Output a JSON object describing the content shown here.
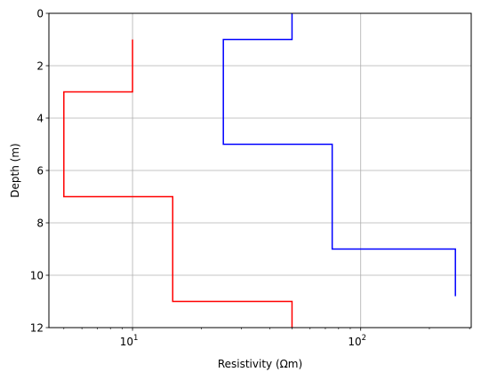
{
  "chart_data": {
    "type": "line",
    "xlabel": "Resistivity (Ωm)",
    "ylabel": "Depth (m)",
    "x_scale": "log",
    "xlim": [
      4.3,
      305
    ],
    "ylim": [
      12,
      0
    ],
    "grid": true,
    "y_ticks": [
      {
        "value": 0,
        "label": "0"
      },
      {
        "value": 2,
        "label": "2"
      },
      {
        "value": 4,
        "label": "4"
      },
      {
        "value": 6,
        "label": "6"
      },
      {
        "value": 8,
        "label": "8"
      },
      {
        "value": 10,
        "label": "10"
      },
      {
        "value": 12,
        "label": "12"
      }
    ],
    "x_ticks": [
      {
        "value": 10,
        "base": "10",
        "exp": "1"
      },
      {
        "value": 100,
        "base": "10",
        "exp": "2"
      }
    ],
    "series": [
      {
        "color": "#0000ff",
        "resistivity": [
          50,
          50,
          25,
          25,
          75,
          75,
          260,
          260
        ],
        "depth": [
          0,
          1,
          1,
          5,
          5,
          9,
          9,
          10.8
        ]
      },
      {
        "color": "#ff0000",
        "resistivity": [
          10,
          10,
          5,
          5,
          15,
          15,
          50,
          50
        ],
        "depth": [
          1,
          3,
          3,
          7,
          7,
          11,
          11,
          12
        ]
      }
    ]
  }
}
